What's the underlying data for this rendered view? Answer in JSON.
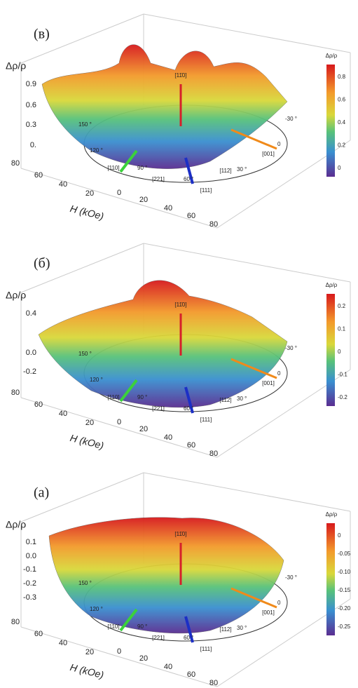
{
  "panels": [
    {
      "label": "(в)",
      "z_label": "Δρ/ρ",
      "z_ticks": [
        "0.9",
        "0.6",
        "0.3",
        "0."
      ],
      "h_label": "H (kOe)",
      "h_ticks": [
        "80",
        "60",
        "40",
        "20",
        "0",
        "20",
        "40",
        "60",
        "80"
      ],
      "angles": [
        "150 °",
        "120 °",
        "90 °",
        "60 °",
        "30 °",
        "0",
        "-30 °"
      ],
      "directions": [
        "[110]",
        "[221]",
        "[111]",
        "[112]",
        "[001]"
      ],
      "top_direction": "[11̄0]",
      "colorbar_title": "Δρ/ρ",
      "colorbar_ticks": [
        "0.8",
        "0.6",
        "0.4",
        "0.2",
        "0"
      ]
    },
    {
      "label": "(б)",
      "z_label": "Δρ/ρ",
      "z_ticks": [
        "0.4",
        "0.0",
        "-0.2"
      ],
      "h_label": "H (kOe)",
      "h_ticks": [
        "80",
        "60",
        "40",
        "20",
        "0",
        "20",
        "40",
        "60",
        "80"
      ],
      "angles": [
        "150 °",
        "120 °",
        "90 °",
        "60 °",
        "30 °",
        "0",
        "-30 °"
      ],
      "directions": [
        "[110]",
        "[221]",
        "[111]",
        "[112]",
        "[001]"
      ],
      "top_direction": "[11̄0]",
      "colorbar_title": "Δρ/ρ",
      "colorbar_ticks": [
        "0.2",
        "0.1",
        "0",
        "-0.1",
        "-0.2"
      ]
    },
    {
      "label": "(a)",
      "z_label": "Δρ/ρ",
      "z_ticks": [
        "0.1",
        "0.0",
        "-0.1",
        "-0.2",
        "-0.3"
      ],
      "h_label": "H (kOe)",
      "h_ticks": [
        "80",
        "60",
        "40",
        "20",
        "0",
        "20",
        "40",
        "60",
        "80"
      ],
      "angles": [
        "150 °",
        "120 °",
        "90 °",
        "60 °",
        "30 °",
        "0",
        "-30 °"
      ],
      "directions": [
        "[110]",
        "[221]",
        "[111]",
        "[112]",
        "[001]"
      ],
      "top_direction": "[11̄0]",
      "colorbar_title": "Δρ/ρ",
      "colorbar_ticks": [
        "0",
        "-0.05",
        "-0.10",
        "-0.15",
        "-0.20",
        "-0.25"
      ]
    }
  ]
}
